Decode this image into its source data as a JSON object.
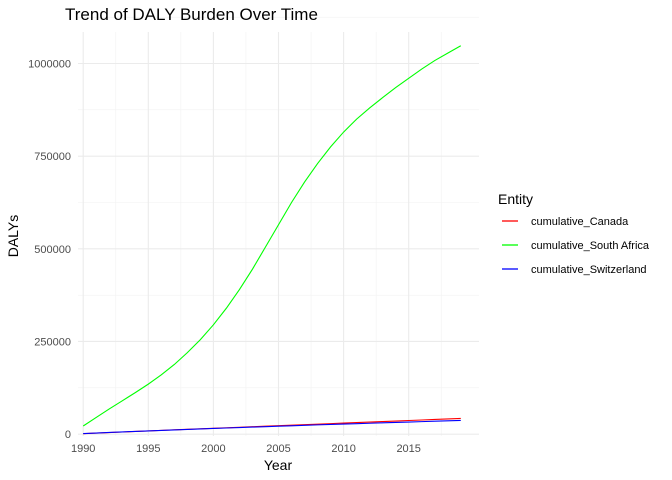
{
  "chart_data": {
    "type": "line",
    "title": "Trend of DALY Burden Over Time",
    "xlabel": "Year",
    "ylabel": "DALYs",
    "xlim": [
      1989.6,
      2020.4
    ],
    "ylim": [
      -5000,
      1085000
    ],
    "x_ticks": [
      1990,
      1995,
      2000,
      2005,
      2010,
      2015
    ],
    "x_tick_labels": [
      "1990",
      "1995",
      "2000",
      "2005",
      "2010",
      "2015"
    ],
    "y_ticks": [
      0,
      250000,
      500000,
      750000,
      1000000
    ],
    "y_tick_labels": [
      "0",
      "250000",
      "500000",
      "750000",
      "1000000"
    ],
    "grid": true,
    "legend_position": "right",
    "legend_title": "Entity",
    "x": [
      1990,
      1991,
      1992,
      1993,
      1994,
      1995,
      1996,
      1997,
      1998,
      1999,
      2000,
      2001,
      2002,
      2003,
      2004,
      2005,
      2006,
      2007,
      2008,
      2009,
      2010,
      2011,
      2012,
      2013,
      2014,
      2015,
      2016,
      2017,
      2018,
      2019
    ],
    "series": [
      {
        "name": "cumulative_Canada",
        "color": "#ff0000",
        "values": [
          1300,
          2800,
          4300,
          5800,
          7300,
          8800,
          10200,
          11600,
          13000,
          14400,
          15800,
          17200,
          18600,
          20000,
          21400,
          22800,
          24200,
          25600,
          27000,
          28400,
          29800,
          31200,
          32600,
          34000,
          35400,
          36800,
          38200,
          39600,
          41000,
          42500
        ]
      },
      {
        "name": "cumulative_South Africa",
        "color": "#00ff00",
        "values": [
          22000,
          45000,
          68000,
          90000,
          112000,
          135000,
          160000,
          188000,
          220000,
          255000,
          295000,
          340000,
          390000,
          445000,
          505000,
          565000,
          625000,
          680000,
          730000,
          775000,
          815000,
          850000,
          880000,
          908000,
          935000,
          960000,
          985000,
          1008000,
          1028000,
          1048000
        ]
      },
      {
        "name": "cumulative_Switzerland",
        "color": "#0000ff",
        "values": [
          1500,
          3000,
          4500,
          6000,
          7400,
          8800,
          10100,
          11400,
          12700,
          14000,
          15300,
          16600,
          17800,
          19000,
          20200,
          21400,
          22600,
          23800,
          25000,
          26100,
          27200,
          28300,
          29400,
          30500,
          31600,
          32700,
          33800,
          34900,
          36000,
          37000
        ]
      }
    ]
  }
}
